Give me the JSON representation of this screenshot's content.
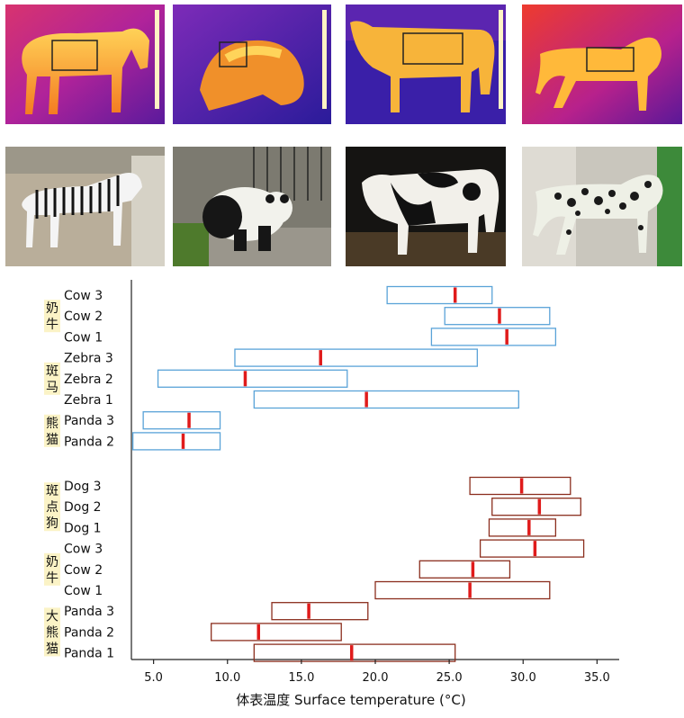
{
  "photos": {
    "thermal": [
      {
        "animal": "zebra",
        "tint": "#f2a13c"
      },
      {
        "animal": "panda",
        "tint": "#e98a2f"
      },
      {
        "animal": "cow",
        "tint": "#f4b33f"
      },
      {
        "animal": "dog",
        "tint": "#f09b3a"
      }
    ],
    "visible": [
      {
        "animal": "zebra"
      },
      {
        "animal": "panda"
      },
      {
        "animal": "cow"
      },
      {
        "animal": "dog"
      }
    ]
  },
  "colors": {
    "upper_box": "#5aa3d8",
    "lower_box": "#8b2e1e",
    "median": "#e01b1b",
    "group_label_bg": "#fbf3c6"
  },
  "chart_data": {
    "type": "box",
    "xlabel": "体表温度 Surface temperature (°C)",
    "xlim": [
      3.5,
      36.5
    ],
    "xticks": [
      5.0,
      10.0,
      15.0,
      20.0,
      25.0,
      30.0,
      35.0
    ],
    "xtick_labels": [
      "5.0",
      "10.0",
      "15.0",
      "20.0",
      "25.0",
      "30.0",
      "35.0"
    ],
    "groups": [
      {
        "label": "奶\n牛",
        "panel": "upper",
        "rows": [
          "Cow 3",
          "Cow 2",
          "Cow 1"
        ]
      },
      {
        "label": "斑\n马",
        "panel": "upper",
        "rows": [
          "Zebra 3",
          "Zebra 2",
          "Zebra 1"
        ]
      },
      {
        "label": "熊\n猫",
        "panel": "upper",
        "rows": [
          "Panda 3",
          "Panda 2"
        ]
      },
      {
        "label": "斑\n点\n狗",
        "panel": "lower",
        "rows": [
          "Dog 3",
          "Dog 2",
          "Dog 1"
        ]
      },
      {
        "label": "奶\n牛",
        "panel": "lower",
        "rows": [
          "Cow 3",
          "Cow 2",
          "Cow 1"
        ]
      },
      {
        "label": "大\n熊\n猫",
        "panel": "lower",
        "rows": [
          "Panda 3",
          "Panda 2",
          "Panda 1"
        ]
      }
    ],
    "series": [
      {
        "name": "Cow 3",
        "panel": "upper",
        "min": 20.8,
        "median": 25.4,
        "max": 27.9
      },
      {
        "name": "Cow 2",
        "panel": "upper",
        "min": 24.7,
        "median": 28.4,
        "max": 31.8
      },
      {
        "name": "Cow 1",
        "panel": "upper",
        "min": 23.8,
        "median": 28.9,
        "max": 32.2
      },
      {
        "name": "Zebra 3",
        "panel": "upper",
        "min": 10.5,
        "median": 16.3,
        "max": 26.9
      },
      {
        "name": "Zebra 2",
        "panel": "upper",
        "min": 5.3,
        "median": 11.2,
        "max": 18.1
      },
      {
        "name": "Zebra 1",
        "panel": "upper",
        "min": 11.8,
        "median": 19.4,
        "max": 29.7
      },
      {
        "name": "Panda 3",
        "panel": "upper",
        "min": 4.3,
        "median": 7.4,
        "max": 9.5
      },
      {
        "name": "Panda 2",
        "panel": "upper",
        "min": 3.6,
        "median": 7.0,
        "max": 9.5
      },
      {
        "name": "Dog 3",
        "panel": "lower",
        "min": 26.4,
        "median": 29.9,
        "max": 33.2
      },
      {
        "name": "Dog 2",
        "panel": "lower",
        "min": 27.9,
        "median": 31.1,
        "max": 33.9
      },
      {
        "name": "Dog 1",
        "panel": "lower",
        "min": 27.7,
        "median": 30.4,
        "max": 32.2
      },
      {
        "name": "Cow 3",
        "panel": "lower",
        "min": 27.1,
        "median": 30.8,
        "max": 34.1
      },
      {
        "name": "Cow 2",
        "panel": "lower",
        "min": 23.0,
        "median": 26.6,
        "max": 29.1
      },
      {
        "name": "Cow 1",
        "panel": "lower",
        "min": 20.0,
        "median": 26.4,
        "max": 31.8
      },
      {
        "name": "Panda 3",
        "panel": "lower",
        "min": 13.0,
        "median": 15.5,
        "max": 19.5
      },
      {
        "name": "Panda 2",
        "panel": "lower",
        "min": 8.9,
        "median": 12.1,
        "max": 17.7
      },
      {
        "name": "Panda 1",
        "panel": "lower",
        "min": 11.8,
        "median": 18.4,
        "max": 25.4
      }
    ]
  }
}
